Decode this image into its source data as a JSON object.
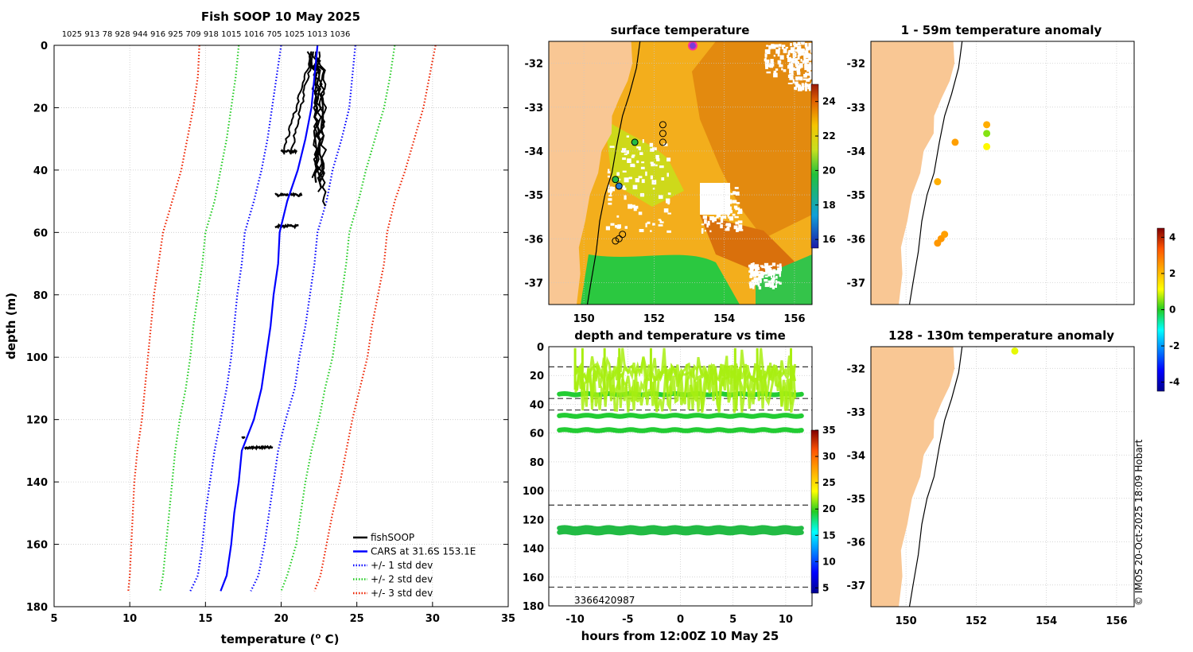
{
  "colors": {
    "land": "#f9c794",
    "grid": "#c8c8c8",
    "cars": "#0000ff",
    "std1": "#0000ff",
    "std2": "#22cc22",
    "std3": "#ee2200",
    "fish": "#000000",
    "dash": "#333333"
  },
  "profile": {
    "title": "Fish SOOP 10 May 2025",
    "top_labels": "1025 913 78 928 944 916 925 709 918 1015 1016 705 1025 1013 1036",
    "xlabel_prefix": "temperature (",
    "xlabel_sup": "o",
    "xlabel_suffix": " C)",
    "ylabel": "depth (m)",
    "xticks": [
      5,
      10,
      15,
      20,
      25,
      30,
      35
    ],
    "yticks": [
      0,
      20,
      40,
      60,
      80,
      100,
      120,
      140,
      160,
      180
    ],
    "legend": [
      {
        "label": "fishSOOP",
        "color": "#000000",
        "style": "solid"
      },
      {
        "label": "CARS at 31.6S 153.1E",
        "color": "#0000ff",
        "style": "solid"
      },
      {
        "label": "+/- 1 std dev",
        "color": "#0000ff",
        "style": "dotted"
      },
      {
        "label": "+/- 2 std dev",
        "color": "#22cc22",
        "style": "dotted"
      },
      {
        "label": "+/- 3 std dev",
        "color": "#ee2200",
        "style": "dotted"
      }
    ]
  },
  "surface": {
    "title": "surface temperature",
    "xticks": [
      "150",
      "152",
      "154",
      "156"
    ],
    "yticks": [
      "-32",
      "-33",
      "-34",
      "-35",
      "-36",
      "-37"
    ],
    "cbar_ticks": [
      "24",
      "22",
      "20",
      "18",
      "16"
    ]
  },
  "depthtime": {
    "title": "depth and temperature vs time",
    "xlabel": "hours from 12:00Z 10 May 25",
    "xticks": [
      "-10",
      "-5",
      "0",
      "5",
      "10"
    ],
    "yticks": [
      "0",
      "20",
      "40",
      "60",
      "80",
      "100",
      "120",
      "140",
      "160",
      "180"
    ],
    "cbar_ticks": [
      "35",
      "30",
      "25",
      "20",
      "15",
      "10",
      "5"
    ],
    "bottom_labels": "3366420987"
  },
  "anom1": {
    "title": "1 - 59m temperature anomaly",
    "yticks": [
      "-32",
      "-33",
      "-34",
      "-35",
      "-36",
      "-37"
    ]
  },
  "anom2": {
    "title": "128 - 130m temperature anomaly",
    "xticks": [
      "150",
      "152",
      "154",
      "156"
    ],
    "yticks": [
      "-32",
      "-33",
      "-34",
      "-35",
      "-36",
      "-37"
    ]
  },
  "anom_cbar": {
    "ticks": [
      "4",
      "2",
      "0",
      "-2",
      "-4"
    ]
  },
  "credit": "© IMOS 20-Oct-2025 18:09 Hobart",
  "chart_data": [
    {
      "type": "line",
      "title": "Fish SOOP 10 May 2025",
      "xlabel": "temperature (o C)",
      "ylabel": "depth (m)",
      "xlim": [
        5,
        35
      ],
      "ylim": [
        180,
        0
      ],
      "depth": [
        0,
        10,
        20,
        30,
        40,
        50,
        60,
        70,
        80,
        90,
        100,
        110,
        120,
        130,
        140,
        150,
        160,
        170,
        175
      ],
      "series": [
        {
          "name": "CARS at 31.6S 153.1E",
          "values": [
            22.4,
            22.2,
            22.0,
            21.6,
            21.1,
            20.4,
            19.9,
            19.8,
            19.5,
            19.3,
            19.0,
            18.7,
            18.2,
            17.4,
            17.2,
            16.9,
            16.7,
            16.4,
            16.0
          ]
        },
        {
          "name": "+1 std dev",
          "values": [
            24.9,
            24.7,
            24.5,
            24.0,
            23.4,
            23.0,
            22.4,
            22.2,
            21.9,
            21.6,
            21.2,
            20.9,
            20.3,
            19.8,
            19.5,
            19.2,
            18.9,
            18.5,
            18.0
          ]
        },
        {
          "name": "-1 std dev",
          "values": [
            20.0,
            19.7,
            19.4,
            19.1,
            18.7,
            18.2,
            17.6,
            17.4,
            17.1,
            16.9,
            16.7,
            16.4,
            16.0,
            15.6,
            15.3,
            15.0,
            14.8,
            14.5,
            14.0
          ]
        },
        {
          "name": "+2 std dev",
          "values": [
            27.5,
            27.2,
            26.8,
            26.2,
            25.6,
            25.1,
            24.5,
            24.3,
            24.0,
            23.7,
            23.4,
            22.9,
            22.5,
            22.0,
            21.6,
            21.3,
            21.0,
            20.4,
            20.0
          ]
        },
        {
          "name": "-2 std dev",
          "values": [
            17.2,
            17.0,
            16.7,
            16.4,
            16.0,
            15.6,
            15.0,
            14.8,
            14.5,
            14.2,
            14.0,
            13.7,
            13.3,
            13.0,
            12.8,
            12.6,
            12.4,
            12.2,
            12.0
          ]
        },
        {
          "name": "+3 std dev",
          "values": [
            30.2,
            29.8,
            29.4,
            28.8,
            28.2,
            27.5,
            27.0,
            26.8,
            26.4,
            26.0,
            25.7,
            25.2,
            24.7,
            24.3,
            23.9,
            23.4,
            23.0,
            22.6,
            22.2
          ]
        },
        {
          "name": "-3 std dev",
          "values": [
            14.6,
            14.5,
            14.2,
            13.8,
            13.4,
            12.8,
            12.2,
            11.9,
            11.6,
            11.4,
            11.2,
            11.0,
            10.8,
            10.5,
            10.3,
            10.2,
            10.1,
            10.0,
            9.9
          ]
        }
      ],
      "fishSOOP": {
        "temps_range": [
          20.0,
          23.0
        ],
        "depths_range": [
          0,
          130
        ],
        "clusters_depth": [
          34,
          48,
          58,
          126,
          129
        ]
      }
    },
    {
      "type": "heatmap",
      "title": "surface temperature",
      "xlim": [
        149,
        156.5
      ],
      "ylim": [
        -37.5,
        -31.5
      ],
      "colorbar": {
        "min": 15.5,
        "max": 25
      }
    },
    {
      "type": "scatter",
      "title": "depth and temperature vs time",
      "xlabel": "hours from 12:00Z 10 May 25",
      "ylabel": "",
      "xlim": [
        -12.5,
        12.5
      ],
      "ylim": [
        180,
        0
      ],
      "bands_depth": [
        33,
        48,
        58,
        126,
        129
      ],
      "dashed_depths": [
        14,
        36,
        44,
        110,
        167
      ],
      "colorbar": {
        "min": 4,
        "max": 35
      }
    },
    {
      "type": "scatter",
      "title": "1 - 59m temperature anomaly",
      "points": [
        {
          "lon": 151.4,
          "lat": -33.8,
          "anomaly": 2.4
        },
        {
          "lon": 152.3,
          "lat": -33.4,
          "anomaly": 2.2
        },
        {
          "lon": 152.3,
          "lat": -33.6,
          "anomaly": 0.5
        },
        {
          "lon": 152.3,
          "lat": -33.9,
          "anomaly": 1.2
        },
        {
          "lon": 150.9,
          "lat": -34.7,
          "anomaly": 2.2
        },
        {
          "lon": 150.9,
          "lat": -36.1,
          "anomaly": 2.5
        },
        {
          "lon": 151.0,
          "lat": -36.0,
          "anomaly": 2.5
        },
        {
          "lon": 151.1,
          "lat": -35.9,
          "anomaly": 2.4
        }
      ]
    },
    {
      "type": "scatter",
      "title": "128 - 130m temperature anomaly",
      "points": [
        {
          "lon": 153.1,
          "lat": -31.6,
          "anomaly": 1.0
        }
      ]
    }
  ]
}
